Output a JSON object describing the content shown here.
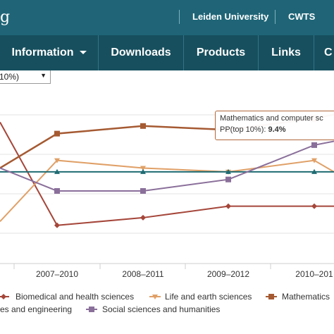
{
  "topbar": {
    "logo_fragment": "g",
    "links": [
      "Leiden University",
      "CWTS"
    ]
  },
  "nav": {
    "items": [
      "Information",
      "Downloads",
      "Products",
      "Links",
      "C"
    ]
  },
  "indicator_select": {
    "value": "10%)"
  },
  "tooltip": {
    "field": "Mathematics and computer sc",
    "metric_label": "PP(top 10%):",
    "metric_value": "9.4%"
  },
  "colors": {
    "topbar": "#1f6577",
    "navbar": "#174f5e",
    "biomedical": "#a5463a",
    "life_earth": "#e0a067",
    "mathematics": "#a55a32",
    "engineering": "#1f6b72",
    "social": "#8a6f9a"
  },
  "chart_data": {
    "type": "line",
    "x": [
      "2007–2010",
      "2008–2011",
      "2009–2012",
      "2010–201"
    ],
    "series": [
      {
        "name": "Biomedical and health sciences",
        "color": "#a5463a",
        "marker": "diamond",
        "values": [
          8.0,
          8.1,
          8.25,
          8.25
        ]
      },
      {
        "name": "Life and earth sciences",
        "color": "#e0a067",
        "marker": "triangle-down",
        "values": [
          8.85,
          8.75,
          8.7,
          8.85
        ]
      },
      {
        "name": "Mathematics",
        "color": "#a55a32",
        "marker": "square",
        "values": [
          9.2,
          9.3,
          9.25,
          9.4
        ]
      },
      {
        "name": "es and engineering",
        "color": "#1f6b72",
        "marker": "triangle-up",
        "values": [
          8.7,
          8.7,
          8.7,
          8.7
        ]
      },
      {
        "name": "Social sciences and humanities",
        "color": "#8a6f9a",
        "marker": "square",
        "values": [
          8.45,
          8.45,
          8.6,
          9.05
        ]
      }
    ],
    "left_partial_values": [
      9.35,
      8.05,
      8.75,
      8.7,
      8.75
    ],
    "right_edge_values": [
      8.25,
      8.7,
      9.45,
      8.7,
      9.1
    ]
  }
}
